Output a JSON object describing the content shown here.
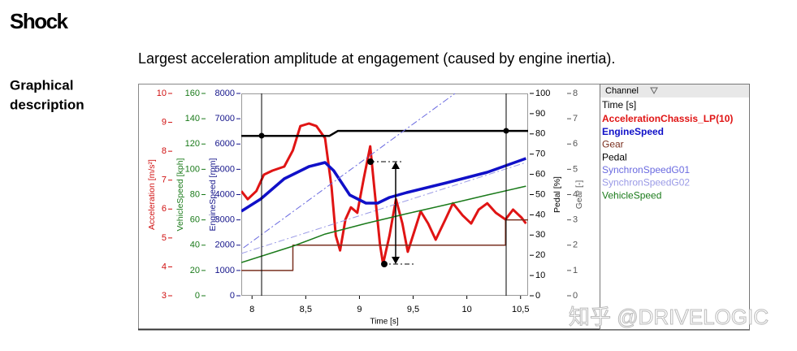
{
  "heading": "Shock",
  "subtitle": "Largest acceleration amplitude at engagement (caused by engine inertia).",
  "section_label": [
    "Graphical",
    "description"
  ],
  "watermark": "知乎 @DRIVELOGIC",
  "chart_data": {
    "type": "line",
    "xlabel": "Time [s]",
    "xlim": [
      7.9,
      10.57
    ],
    "xticks": [
      8,
      {
        "value": 8.5,
        "label": "8,5"
      },
      9,
      {
        "value": 9.5,
        "label": "9,5"
      },
      10,
      {
        "value": 10.5,
        "label": "10,5"
      }
    ],
    "legend_title": "Channel",
    "axes": [
      {
        "label": "Acceleration [m/s²]",
        "color": "#d01010",
        "side": "left",
        "ylim": [
          3,
          10
        ],
        "yticks": [
          3,
          4,
          5,
          6,
          7,
          8,
          9,
          10
        ]
      },
      {
        "label": "VehicleSpeed [kph]",
        "color": "#1a7a1a",
        "side": "left",
        "ylim": [
          0,
          160
        ],
        "yticks": [
          0,
          20,
          40,
          60,
          80,
          100,
          120,
          140,
          160
        ]
      },
      {
        "label": "EngineSpeed [rpm]",
        "color": "#14148a",
        "side": "left",
        "ylim": [
          0,
          8000
        ],
        "yticks": [
          0,
          1000,
          2000,
          3000,
          4000,
          5000,
          6000,
          7000,
          8000
        ]
      },
      {
        "label": "Pedal [%]",
        "color": "#000000",
        "side": "right",
        "ylim": [
          0,
          100
        ],
        "yticks": [
          0,
          10,
          20,
          30,
          40,
          50,
          60,
          70,
          80,
          90,
          100
        ]
      },
      {
        "label": "Gear [-]",
        "color": "#555555",
        "side": "right",
        "ylim": [
          0,
          8
        ],
        "yticks": [
          0,
          1,
          2,
          3,
          4,
          5,
          6,
          7,
          8
        ]
      }
    ],
    "series": [
      {
        "name": "AccelerationChassis_LP(10)",
        "color": "#e01414",
        "bold": true,
        "axis": 0,
        "width": 3,
        "x": [
          7.9,
          7.96,
          8.04,
          8.11,
          8.19,
          8.3,
          8.38,
          8.45,
          8.53,
          8.6,
          8.68,
          8.74,
          8.78,
          8.82,
          8.87,
          8.92,
          8.98,
          9.04,
          9.1,
          9.13,
          9.19,
          9.22,
          9.28,
          9.34,
          9.4,
          9.45,
          9.51,
          9.57,
          9.64,
          9.71,
          9.8,
          9.87,
          9.96,
          10.04,
          10.11,
          10.19,
          10.27,
          10.36,
          10.43,
          10.51,
          10.55
        ],
        "values": [
          6.62,
          6.34,
          6.62,
          7.19,
          7.33,
          7.47,
          8.03,
          8.87,
          8.96,
          8.87,
          8.45,
          6.76,
          5.08,
          4.57,
          5.64,
          6.06,
          5.87,
          7.05,
          8.17,
          7.05,
          4.8,
          4.1,
          5.08,
          6.34,
          5.5,
          4.52,
          5.22,
          5.92,
          5.5,
          4.94,
          5.64,
          6.2,
          5.78,
          5.5,
          5.98,
          6.2,
          5.87,
          5.64,
          5.98,
          5.7,
          5.5
        ]
      },
      {
        "name": "EngineSpeed",
        "color": "#1010c8",
        "bold": true,
        "axis": 2,
        "width": 3.5,
        "x": [
          7.9,
          8.08,
          8.3,
          8.53,
          8.68,
          8.76,
          8.91,
          9.06,
          9.17,
          9.28,
          9.44,
          9.81,
          10.19,
          10.55
        ],
        "values": [
          3341,
          3823,
          4627,
          5108,
          5269,
          4948,
          3984,
          3663,
          3663,
          3888,
          4080,
          4466,
          4884,
          5430
        ]
      },
      {
        "name": "Gear",
        "color": "#7a3020",
        "axis": 4,
        "width": 1.5,
        "x": [
          7.9,
          8.38,
          8.38,
          10.36,
          10.36,
          10.57
        ],
        "values": [
          1,
          1,
          2,
          2,
          3,
          3
        ]
      },
      {
        "name": "Pedal",
        "color": "#000000",
        "axis": 3,
        "width": 2.5,
        "x": [
          7.9,
          8.72,
          8.8,
          10.57
        ],
        "values": [
          79,
          79,
          81.5,
          81.5
        ]
      },
      {
        "name": "SynchronSpeedG01",
        "color": "#6a6ae0",
        "axis": 2,
        "width": 1,
        "style": "dash-dot",
        "x": [
          7.92,
          9.89
        ],
        "values": [
          1896,
          8000
        ]
      },
      {
        "name": "SynchronSpeedG02",
        "color": "#9a9ae6",
        "axis": 2,
        "width": 1,
        "style": "dash-dot",
        "x": [
          7.9,
          10.55
        ],
        "values": [
          1670,
          5270
        ]
      },
      {
        "name": "VehicleSpeed",
        "color": "#1a7a1a",
        "axis": 1,
        "width": 1.5,
        "x": [
          7.9,
          8.38,
          8.68,
          9.06,
          9.44,
          9.81,
          10.19,
          10.55
        ],
        "values": [
          26.3,
          39.2,
          48.8,
          57.2,
          64.9,
          72,
          79.7,
          86.7
        ]
      }
    ]
  }
}
